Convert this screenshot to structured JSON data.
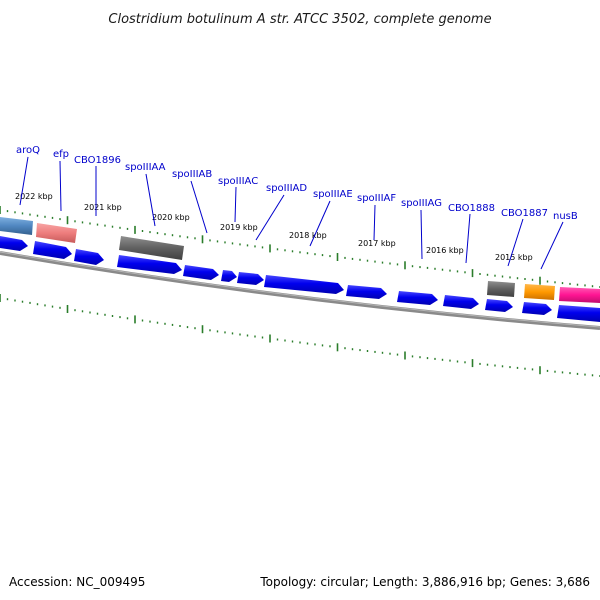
{
  "title": "Clostridium botulinum A str. ATCC 3502, complete genome",
  "footer": {
    "accession": "Accession: NC_009495",
    "summary": "Topology: circular; Length: 3,886,916 bp; Genes: 3,686"
  },
  "kbp_labels": [
    "2022 kbp",
    "2021 kbp",
    "2020 kbp",
    "2019 kbp",
    "2018 kbp",
    "2017 kbp",
    "2016 kbp",
    "2015 kbp"
  ],
  "gene_labels": [
    "aroQ",
    "efp",
    "CBO1896",
    "spoIIIAA",
    "spoIIIAB",
    "spoIIIAC",
    "spoIIIAD",
    "spoIIIAE",
    "spoIIIAF",
    "spoIIIAG",
    "CBO1888",
    "CBO1887",
    "nusB"
  ],
  "colors": {
    "arrow": "#0000ee",
    "tick": "#2a7d2a",
    "backbone": "#808080",
    "label": "#0000cc",
    "aroQ_box": "#5b8fc4",
    "efp_box": "#f08080",
    "CBO1896_box": "#606060",
    "CBO1888_box": "#606060",
    "CBO1887_box": "#ff9900",
    "nusB_box": "#ff1493"
  }
}
